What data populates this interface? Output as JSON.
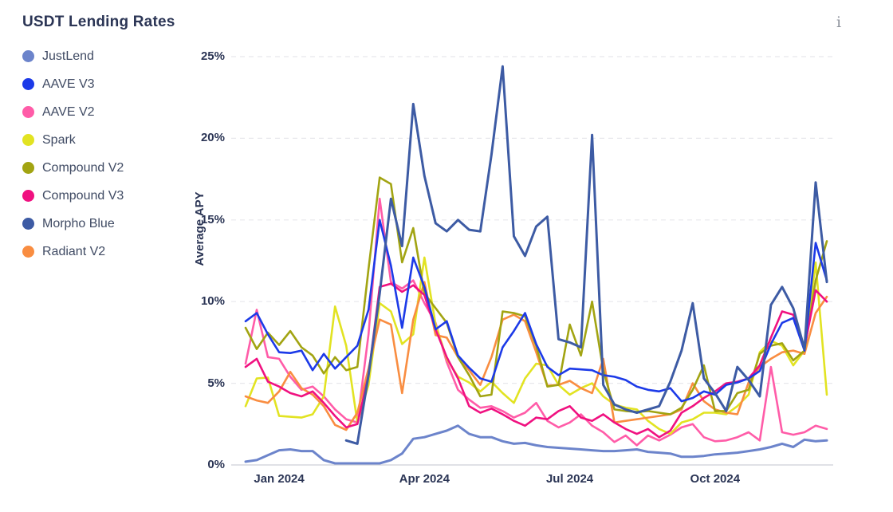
{
  "header": {
    "title": "USDT Lending Rates",
    "info_icon_glyph": "i"
  },
  "legend": {
    "items": [
      {
        "label": "JustLend",
        "color": "#6c84cb"
      },
      {
        "label": "AAVE V3",
        "color": "#1c3ae8"
      },
      {
        "label": "AAVE V2",
        "color": "#ff5ca8"
      },
      {
        "label": "Spark",
        "color": "#e2e322"
      },
      {
        "label": "Compound V2",
        "color": "#a2a412"
      },
      {
        "label": "Compound V3",
        "color": "#f01180"
      },
      {
        "label": "Morpho Blue",
        "color": "#3d5ba4"
      },
      {
        "label": "Radiant V2",
        "color": "#f98d41"
      }
    ]
  },
  "chart_data": {
    "type": "line",
    "title": "USDT Lending Rates",
    "ylabel": "Average APY",
    "xlabel": "",
    "ylim": [
      0,
      25
    ],
    "y_ticks": [
      0,
      5,
      10,
      15,
      20,
      25
    ],
    "y_tick_suffix": "%",
    "grid": "horizontal-dashed",
    "legend_position": "left",
    "x_unit": "week",
    "x_count": 53,
    "x_range_note": "weekly points, Dec 2023 through Dec 2024",
    "x_ticks": [
      {
        "label": "Jan 2024",
        "index": 3
      },
      {
        "label": "Apr 2024",
        "index": 16
      },
      {
        "label": "Jul 2024",
        "index": 29
      },
      {
        "label": "Oct 2024",
        "index": 42
      }
    ],
    "series": [
      {
        "name": "JustLend",
        "color": "#6c84cb",
        "width": 3,
        "values": [
          0.2,
          0.3,
          0.6,
          0.9,
          0.95,
          0.85,
          0.85,
          0.3,
          0.1,
          0.1,
          0.1,
          0.1,
          0.1,
          0.3,
          0.7,
          1.6,
          1.7,
          1.9,
          2.1,
          2.4,
          1.9,
          1.7,
          1.7,
          1.45,
          1.3,
          1.35,
          1.2,
          1.1,
          1.05,
          1.0,
          0.95,
          0.9,
          0.85,
          0.85,
          0.9,
          0.95,
          0.8,
          0.75,
          0.7,
          0.5,
          0.5,
          0.55,
          0.65,
          0.7,
          0.75,
          0.85,
          0.95,
          1.1,
          1.3,
          1.1,
          1.55,
          1.45,
          1.5
        ]
      },
      {
        "name": "AAVE V2",
        "color": "#ff5ca8",
        "width": 2.6,
        "values": [
          6.2,
          9.5,
          6.6,
          6.5,
          5.4,
          4.6,
          4.8,
          4.2,
          3.4,
          2.8,
          2.6,
          8.0,
          16.3,
          11.2,
          10.8,
          11.3,
          9.9,
          8.7,
          6.3,
          4.6,
          4.0,
          3.5,
          3.6,
          3.3,
          2.9,
          3.2,
          3.8,
          2.7,
          2.3,
          2.6,
          3.1,
          2.4,
          2.0,
          1.4,
          1.8,
          1.2,
          1.8,
          1.5,
          1.85,
          2.3,
          2.5,
          1.7,
          1.45,
          1.5,
          1.7,
          2.0,
          1.5,
          6.0,
          2.0,
          1.85,
          2.0,
          2.4,
          2.2
        ]
      },
      {
        "name": "Spark",
        "color": "#e2e322",
        "width": 2.6,
        "values": [
          3.6,
          5.3,
          5.35,
          3.0,
          2.95,
          2.9,
          3.1,
          4.2,
          9.7,
          7.3,
          2.6,
          4.9,
          9.9,
          9.4,
          7.4,
          8.0,
          12.7,
          8.6,
          6.5,
          5.4,
          5.05,
          4.5,
          5.1,
          4.4,
          3.8,
          5.3,
          6.2,
          6.1,
          4.9,
          4.3,
          4.7,
          5.0,
          4.2,
          3.7,
          3.5,
          3.4,
          2.7,
          2.2,
          1.9,
          2.6,
          2.8,
          3.2,
          3.2,
          3.1,
          3.6,
          4.3,
          6.9,
          7.6,
          7.3,
          6.1,
          7.0,
          12.4,
          4.3
        ]
      },
      {
        "name": "Radiant V2",
        "color": "#f98d41",
        "width": 2.6,
        "values": [
          4.2,
          3.95,
          3.8,
          4.5,
          5.7,
          4.7,
          4.3,
          3.6,
          2.45,
          2.15,
          3.2,
          5.9,
          8.9,
          8.6,
          4.4,
          8.9,
          11.2,
          7.95,
          7.8,
          6.6,
          5.8,
          4.9,
          6.6,
          8.9,
          9.2,
          8.8,
          6.9,
          4.85,
          4.9,
          5.15,
          4.7,
          4.4,
          6.5,
          2.6,
          2.7,
          2.8,
          2.9,
          3.0,
          3.1,
          3.4,
          5.0,
          3.9,
          3.4,
          3.2,
          3.1,
          5.05,
          6.0,
          6.5,
          6.9,
          7.0,
          6.8,
          9.3,
          10.3
        ]
      },
      {
        "name": "Compound V2",
        "color": "#a2a412",
        "width": 2.6,
        "values": [
          8.4,
          7.1,
          8.1,
          7.35,
          8.2,
          7.2,
          6.7,
          5.6,
          6.6,
          5.8,
          6.0,
          12.0,
          17.6,
          17.2,
          12.4,
          14.5,
          10.5,
          9.6,
          8.7,
          6.6,
          5.5,
          4.2,
          4.3,
          9.4,
          9.3,
          9.1,
          7.3,
          4.8,
          4.9,
          8.6,
          6.7,
          10.0,
          5.8,
          3.4,
          3.3,
          3.25,
          3.3,
          3.2,
          3.1,
          3.5,
          4.6,
          6.1,
          3.3,
          3.3,
          4.4,
          4.6,
          6.8,
          7.3,
          7.45,
          6.4,
          7.0,
          11.3,
          13.7
        ]
      },
      {
        "name": "Compound V3",
        "color": "#f01180",
        "width": 2.6,
        "values": [
          6.0,
          6.5,
          5.1,
          4.8,
          4.4,
          4.2,
          4.5,
          3.8,
          3.0,
          2.3,
          2.5,
          5.5,
          10.9,
          11.1,
          10.6,
          11.0,
          10.4,
          8.3,
          6.6,
          5.3,
          3.6,
          3.2,
          3.45,
          3.1,
          2.7,
          2.4,
          2.9,
          2.8,
          3.3,
          3.6,
          2.9,
          2.7,
          3.1,
          2.6,
          2.2,
          1.9,
          2.2,
          1.7,
          2.1,
          3.2,
          3.6,
          4.1,
          4.5,
          5.0,
          5.1,
          5.3,
          6.1,
          7.8,
          9.4,
          9.2,
          7.2,
          10.7,
          10.0
        ]
      },
      {
        "name": "AAVE V3",
        "color": "#1c3ae8",
        "width": 2.6,
        "values": [
          8.8,
          9.3,
          8.0,
          6.9,
          6.85,
          7.0,
          5.8,
          6.8,
          5.9,
          6.6,
          7.3,
          9.5,
          15.0,
          12.2,
          8.4,
          12.7,
          10.9,
          8.3,
          8.8,
          6.7,
          5.95,
          5.3,
          5.1,
          7.2,
          8.2,
          9.3,
          7.4,
          6.0,
          5.5,
          5.9,
          5.85,
          5.8,
          5.5,
          5.4,
          5.2,
          4.8,
          4.6,
          4.5,
          4.7,
          3.9,
          4.1,
          4.5,
          4.3,
          4.9,
          5.05,
          5.3,
          5.75,
          7.4,
          8.7,
          9.0,
          7.0,
          13.6,
          11.3
        ]
      },
      {
        "name": "Morpho Blue",
        "color": "#3d5ba4",
        "width": 3,
        "values": [
          null,
          null,
          null,
          null,
          null,
          null,
          null,
          null,
          null,
          1.5,
          1.3,
          5.5,
          10.5,
          16.3,
          13.4,
          22.1,
          17.7,
          14.8,
          14.3,
          15.0,
          14.4,
          14.3,
          19.0,
          24.4,
          14.0,
          12.8,
          14.6,
          15.2,
          7.7,
          7.5,
          7.2,
          20.2,
          4.9,
          3.7,
          3.4,
          3.2,
          3.4,
          3.6,
          5.1,
          7.0,
          9.9,
          5.3,
          4.4,
          3.3,
          6.0,
          5.2,
          4.2,
          9.8,
          10.9,
          9.6,
          7.1,
          17.3,
          11.2
        ]
      }
    ]
  }
}
